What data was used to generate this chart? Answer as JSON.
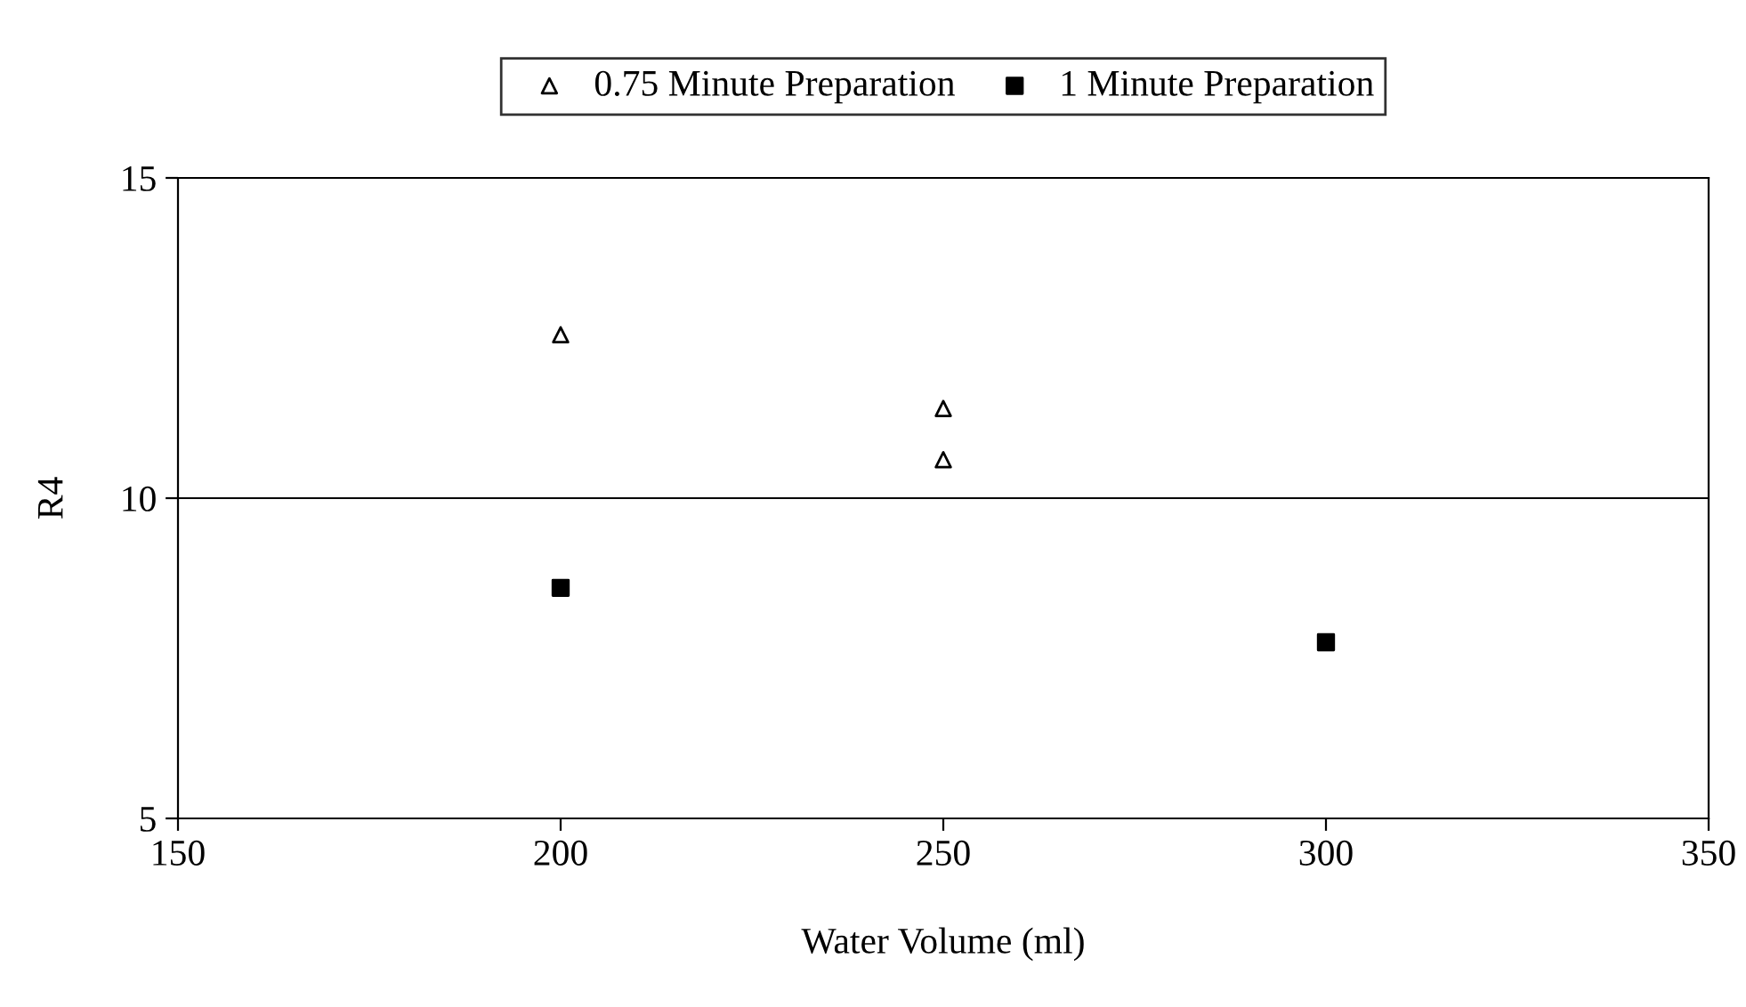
{
  "chart_data": {
    "type": "scatter",
    "xlabel": "Water Volume (ml)",
    "ylabel": "R4",
    "series": [
      {
        "name": "0.75 Minute Preparation",
        "color": "#000000",
        "marker": "triangle",
        "x": [
          200,
          250,
          250
        ],
        "values": [
          12.55,
          11.4,
          10.6
        ]
      },
      {
        "name": "1 Minute Preparation",
        "color": "#000000",
        "marker": "square",
        "x": [
          200,
          300
        ],
        "values": [
          8.6,
          7.75
        ]
      }
    ],
    "xlim": [
      150,
      350
    ],
    "xticks": [
      150,
      200,
      250,
      300,
      350
    ],
    "ylim": [
      5,
      15
    ],
    "yticks": [
      5,
      10,
      15
    ],
    "grid": "y",
    "legend": "top"
  }
}
